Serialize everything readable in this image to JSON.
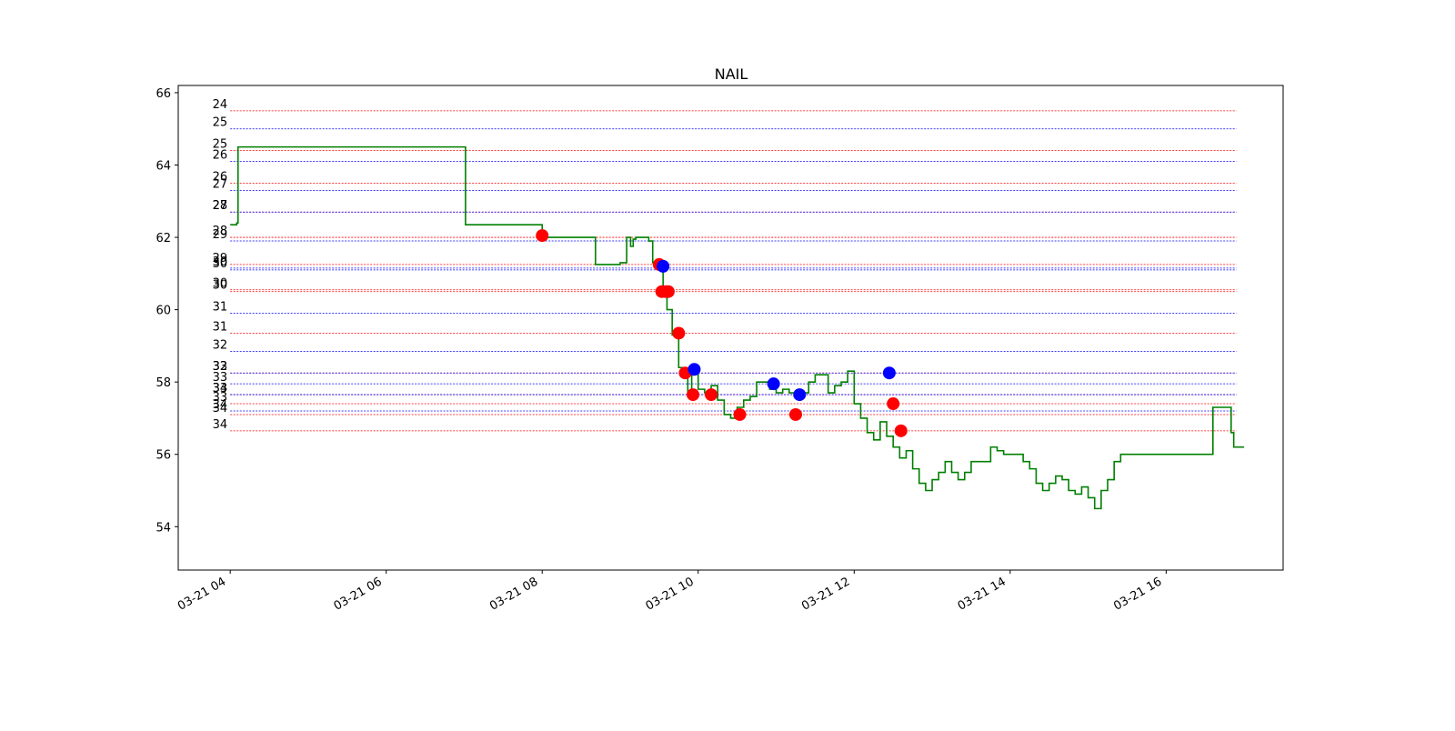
{
  "chart_data": {
    "type": "line",
    "title": "NAIL",
    "xlabel": "",
    "ylabel": "",
    "grid": false,
    "xlim": [
      "03-21 03:20",
      "03-21 17:30"
    ],
    "ylim": [
      52.8,
      66.2
    ],
    "x_ticks": [
      "03-21 04",
      "03-21 06",
      "03-21 08",
      "03-21 10",
      "03-21 12",
      "03-21 14",
      "03-21 16"
    ],
    "y_ticks": [
      "54",
      "56",
      "58",
      "60",
      "62",
      "64",
      "66"
    ],
    "colors": {
      "price_line": "#008000",
      "sell_marker": "#ff0000",
      "buy_marker": "#0000ff"
    },
    "series": [
      {
        "type": "line",
        "x": [
          "03-21 04:00",
          "03-21 04:05",
          "03-21 04:06",
          "03-21 07:00",
          "03-21 07:01",
          "03-21 07:58",
          "03-21 08:00",
          "03-21 08:40",
          "03-21 08:41",
          "03-21 09:00",
          "03-21 09:05",
          "03-21 09:08",
          "03-21 09:10",
          "03-21 09:12",
          "03-21 09:20",
          "03-21 09:22",
          "03-21 09:25",
          "03-21 09:30",
          "03-21 09:33",
          "03-21 09:36",
          "03-21 09:40",
          "03-21 09:45",
          "03-21 09:48",
          "03-21 09:52",
          "03-21 09:55",
          "03-21 10:00",
          "03-21 10:05",
          "03-21 10:10",
          "03-21 10:15",
          "03-21 10:20",
          "03-21 10:25",
          "03-21 10:30",
          "03-21 10:35",
          "03-21 10:40",
          "03-21 10:45",
          "03-21 10:50",
          "03-21 10:55",
          "03-21 11:00",
          "03-21 11:05",
          "03-21 11:10",
          "03-21 11:15",
          "03-21 11:20",
          "03-21 11:25",
          "03-21 11:30",
          "03-21 11:35",
          "03-21 11:40",
          "03-21 11:45",
          "03-21 11:50",
          "03-21 11:55",
          "03-21 12:00",
          "03-21 12:05",
          "03-21 12:10",
          "03-21 12:15",
          "03-21 12:20",
          "03-21 12:25",
          "03-21 12:30",
          "03-21 12:35",
          "03-21 12:40",
          "03-21 12:45",
          "03-21 12:50",
          "03-21 12:55",
          "03-21 13:00",
          "03-21 13:05",
          "03-21 13:10",
          "03-21 13:15",
          "03-21 13:20",
          "03-21 13:25",
          "03-21 13:30",
          "03-21 13:35",
          "03-21 13:40",
          "03-21 13:45",
          "03-21 13:50",
          "03-21 13:55",
          "03-21 14:00",
          "03-21 14:05",
          "03-21 14:10",
          "03-21 14:15",
          "03-21 14:20",
          "03-21 14:25",
          "03-21 14:30",
          "03-21 14:35",
          "03-21 14:40",
          "03-21 14:45",
          "03-21 14:50",
          "03-21 14:55",
          "03-21 15:00",
          "03-21 15:05",
          "03-21 15:10",
          "03-21 15:15",
          "03-21 15:20",
          "03-21 15:25",
          "03-21 15:30",
          "03-21 15:35",
          "03-21 15:40",
          "03-21 15:45",
          "03-21 15:50",
          "03-21 15:55",
          "03-21 16:00",
          "03-21 16:05",
          "03-21 16:10",
          "03-21 16:35",
          "03-21 16:36",
          "03-21 16:48",
          "03-21 16:50",
          "03-21 16:52",
          "03-21 16:55",
          "03-21 17:00"
        ],
        "y": [
          62.35,
          62.4,
          64.5,
          64.5,
          62.35,
          62.35,
          62.0,
          62.0,
          61.25,
          61.3,
          62.0,
          61.75,
          61.95,
          62.0,
          62.0,
          61.9,
          61.3,
          61.2,
          60.5,
          60.0,
          59.3,
          58.4,
          58.2,
          57.7,
          58.3,
          57.8,
          57.7,
          57.9,
          57.5,
          57.1,
          57.0,
          57.3,
          57.5,
          57.6,
          58.0,
          58.0,
          57.8,
          57.7,
          57.8,
          57.7,
          57.65,
          57.7,
          58.0,
          58.2,
          58.2,
          57.7,
          57.9,
          58.0,
          58.3,
          57.4,
          57.0,
          56.6,
          56.4,
          56.9,
          56.5,
          56.2,
          55.9,
          56.1,
          55.6,
          55.2,
          55.0,
          55.3,
          55.5,
          55.8,
          55.5,
          55.3,
          55.5,
          55.8,
          55.8,
          55.8,
          56.2,
          56.1,
          56.0,
          56.0,
          56.0,
          55.8,
          55.6,
          55.2,
          55.0,
          55.2,
          55.4,
          55.3,
          55.0,
          54.9,
          55.1,
          54.8,
          54.5,
          55.0,
          55.3,
          55.8,
          56.0,
          56.0,
          56.0,
          56.0,
          56.0,
          56.0,
          56.0,
          56.0,
          56.0,
          56.0,
          56.0,
          57.3,
          57.3,
          56.6,
          56.2,
          56.2,
          56.2
        ]
      },
      {
        "type": "scatter",
        "color": "red",
        "x": [
          "03-21 08:00",
          "03-21 09:30",
          "03-21 09:32",
          "03-21 09:35",
          "03-21 09:37",
          "03-21 09:45",
          "03-21 09:50",
          "03-21 09:56",
          "03-21 10:10",
          "03-21 10:32",
          "03-21 11:15",
          "03-21 12:30",
          "03-21 12:36"
        ],
        "y": [
          62.05,
          61.25,
          60.5,
          60.5,
          60.5,
          59.35,
          58.25,
          57.65,
          57.65,
          57.1,
          57.1,
          57.4,
          56.65
        ]
      },
      {
        "type": "scatter",
        "color": "blue",
        "x": [
          "03-21 09:33",
          "03-21 09:57",
          "03-21 10:58",
          "03-21 11:18",
          "03-21 12:27"
        ],
        "y": [
          61.2,
          58.35,
          57.95,
          57.65,
          58.25
        ]
      }
    ],
    "level_lines": [
      {
        "label": "24",
        "y": 65.5,
        "color": "red"
      },
      {
        "label": "25",
        "y": 65.0,
        "color": "blue"
      },
      {
        "label": "25",
        "y": 64.4,
        "color": "red"
      },
      {
        "label": "26",
        "y": 64.1,
        "color": "blue"
      },
      {
        "label": "26",
        "y": 63.5,
        "color": "red"
      },
      {
        "label": "27",
        "y": 63.3,
        "color": "blue"
      },
      {
        "label": "27",
        "y": 62.7,
        "color": "red"
      },
      {
        "label": "28",
        "y": 62.7,
        "color": "blue"
      },
      {
        "label": "28",
        "y": 62.0,
        "color": "red"
      },
      {
        "label": "29",
        "y": 61.9,
        "color": "blue"
      },
      {
        "label": "29",
        "y": 61.25,
        "color": "red"
      },
      {
        "label": "30",
        "y": 61.15,
        "color": "blue"
      },
      {
        "label": "30",
        "y": 61.1,
        "color": "blue"
      },
      {
        "label": "30",
        "y": 60.55,
        "color": "red"
      },
      {
        "label": "30",
        "y": 60.5,
        "color": "red"
      },
      {
        "label": "31",
        "y": 59.9,
        "color": "blue"
      },
      {
        "label": "31",
        "y": 59.35,
        "color": "red"
      },
      {
        "label": "32",
        "y": 58.85,
        "color": "blue"
      },
      {
        "label": "32",
        "y": 58.25,
        "color": "red"
      },
      {
        "label": "33",
        "y": 58.25,
        "color": "blue"
      },
      {
        "label": "33",
        "y": 57.95,
        "color": "blue"
      },
      {
        "label": "33",
        "y": 57.65,
        "color": "red"
      },
      {
        "label": "34",
        "y": 57.65,
        "color": "blue"
      },
      {
        "label": "33",
        "y": 57.4,
        "color": "red"
      },
      {
        "label": "34",
        "y": 57.2,
        "color": "blue"
      },
      {
        "label": "34",
        "y": 57.1,
        "color": "red"
      },
      {
        "label": "34",
        "y": 56.65,
        "color": "red"
      }
    ]
  }
}
